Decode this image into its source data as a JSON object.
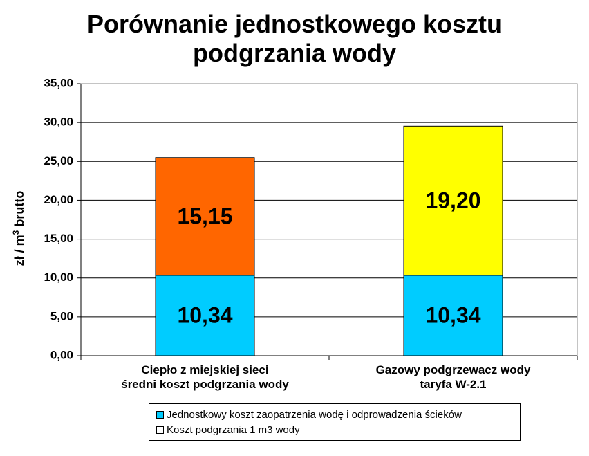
{
  "title_lines": [
    "Porównanie jednostkowego kosztu",
    "podgrzania wody"
  ],
  "chart_data": {
    "type": "bar",
    "stacked": true,
    "categories": [
      [
        "Ciepło z miejskiej sieci",
        "średni koszt podgrzania wody"
      ],
      [
        "Gazowy podgrzewacz wody",
        "taryfa W-2.1"
      ]
    ],
    "series": [
      {
        "name": "Jednostkowy koszt zaopatrzenia wodę i odprowadzenia ścieków",
        "values": [
          10.34,
          10.34
        ],
        "labels": [
          "10,34",
          "10,34"
        ],
        "colors": [
          "#00ccff",
          "#00ccff"
        ]
      },
      {
        "name": "Koszt podgrzania 1 m3 wody",
        "values": [
          15.15,
          19.2
        ],
        "labels": [
          "15,15",
          "19,20"
        ],
        "colors": [
          "#ff6600",
          "#ffff00"
        ]
      }
    ],
    "ylabel": "zł / m",
    "ylabel_sup": "3",
    "ylabel_tail": " brutto",
    "ylim": [
      0,
      35
    ],
    "yticks": [
      0,
      5,
      10,
      15,
      20,
      25,
      30,
      35
    ],
    "ytick_labels": [
      "0,00",
      "5,00",
      "10,00",
      "15,00",
      "20,00",
      "25,00",
      "30,00",
      "35,00"
    ],
    "grid": true,
    "legend_position": "bottom"
  },
  "legend": [
    {
      "label": "Jednostkowy koszt zaopatrzenia wodę i odprowadzenia ścieków",
      "color": "#00ccff"
    },
    {
      "label": "Koszt podgrzania 1 m3 wody",
      "color": "#ffffff"
    }
  ]
}
